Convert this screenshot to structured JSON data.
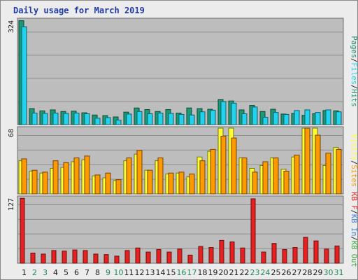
{
  "title": "Daily usage for March 2019",
  "colors": {
    "panel": "#bdbdbd",
    "pages": "#1f8a72",
    "files": "#22d3f0",
    "hits": "#1c9a78",
    "visits": "#ffff33",
    "sites": "#ff9900",
    "kb_in": "#3c82e0",
    "kb_out": "#3aa83a",
    "kb_f": "#e82020",
    "weekday_label": "#1a1a1a",
    "weekend_label": "#1f8a5a"
  },
  "chart_data": [
    {
      "type": "bar",
      "name": "hits-files",
      "categories": [
        "1",
        "2",
        "3",
        "4",
        "5",
        "6",
        "7",
        "8",
        "9",
        "10",
        "11",
        "12",
        "13",
        "14",
        "15",
        "16",
        "17",
        "18",
        "19",
        "20",
        "21",
        "22",
        "23",
        "24",
        "25",
        "26",
        "27",
        "28",
        "29",
        "30",
        "31"
      ],
      "weekend": [
        false,
        true,
        true,
        false,
        false,
        false,
        false,
        false,
        true,
        true,
        false,
        false,
        false,
        false,
        false,
        true,
        true,
        false,
        false,
        false,
        false,
        false,
        true,
        true,
        false,
        false,
        false,
        false,
        false,
        true,
        true
      ],
      "ymax": 324,
      "ytick_label": "324",
      "legend": [
        "Pages",
        "/",
        "Files",
        "/",
        "Hits"
      ],
      "series": [
        {
          "name": "Hits",
          "values": [
            325,
            50,
            43,
            46,
            41,
            42,
            37,
            30,
            28,
            24,
            39,
            52,
            47,
            41,
            47,
            36,
            52,
            50,
            48,
            78,
            74,
            46,
            60,
            41,
            48,
            33,
            35,
            29,
            34,
            44,
            43
          ]
        },
        {
          "name": "Files",
          "values": [
            306,
            36,
            35,
            36,
            35,
            36,
            34,
            20,
            22,
            14,
            33,
            41,
            34,
            36,
            35,
            32,
            30,
            40,
            45,
            72,
            67,
            34,
            55,
            23,
            38,
            32,
            44,
            46,
            38,
            46,
            40
          ]
        }
      ]
    },
    {
      "type": "bar",
      "name": "visits-sites",
      "categories": [
        "1",
        "2",
        "3",
        "4",
        "5",
        "6",
        "7",
        "8",
        "9",
        "10",
        "11",
        "12",
        "13",
        "14",
        "15",
        "16",
        "17",
        "18",
        "19",
        "20",
        "21",
        "22",
        "23",
        "24",
        "25",
        "26",
        "27",
        "28",
        "29",
        "30",
        "31"
      ],
      "ymax": 68,
      "ytick_label": "68",
      "legend": [
        "Visits",
        "/",
        "Sites"
      ],
      "series": [
        {
          "name": "Visits",
          "values": [
            35,
            24,
            22,
            27,
            28,
            34,
            36,
            19,
            17,
            14,
            35,
            42,
            25,
            35,
            21,
            22,
            18,
            39,
            45,
            82,
            71,
            38,
            27,
            30,
            38,
            26,
            39,
            86,
            75,
            30,
            49
          ]
        },
        {
          "name": "Sites",
          "values": [
            37,
            25,
            23,
            35,
            33,
            38,
            40,
            20,
            22,
            15,
            38,
            46,
            25,
            38,
            22,
            23,
            21,
            35,
            47,
            61,
            59,
            38,
            23,
            34,
            38,
            24,
            41,
            73,
            62,
            43,
            47
          ]
        }
      ]
    },
    {
      "type": "bar",
      "name": "kbytes",
      "categories": [
        "1",
        "2",
        "3",
        "4",
        "5",
        "6",
        "7",
        "8",
        "9",
        "10",
        "11",
        "12",
        "13",
        "14",
        "15",
        "16",
        "17",
        "18",
        "19",
        "20",
        "21",
        "22",
        "23",
        "24",
        "25",
        "26",
        "27",
        "28",
        "29",
        "30",
        "31"
      ],
      "ymax": 127,
      "ytick_label": "127",
      "legend": [
        "KB F",
        "/",
        "KB In",
        "/",
        "KB Out"
      ],
      "series": [
        {
          "name": "KB F",
          "values": [
            128,
            20,
            18,
            25,
            24,
            26,
            25,
            18,
            17,
            14,
            25,
            30,
            22,
            27,
            22,
            28,
            16,
            33,
            31,
            45,
            42,
            30,
            127,
            22,
            39,
            27,
            31,
            51,
            44,
            28,
            34
          ]
        }
      ]
    },
    {
      "type": "axis",
      "name": "day-labels",
      "categories": [
        "1",
        "2",
        "3",
        "4",
        "5",
        "6",
        "7",
        "8",
        "9",
        "10",
        "11",
        "12",
        "13",
        "14",
        "15",
        "16",
        "17",
        "18",
        "19",
        "20",
        "21",
        "22",
        "23",
        "24",
        "25",
        "26",
        "27",
        "28",
        "29",
        "30",
        "31"
      ]
    }
  ]
}
